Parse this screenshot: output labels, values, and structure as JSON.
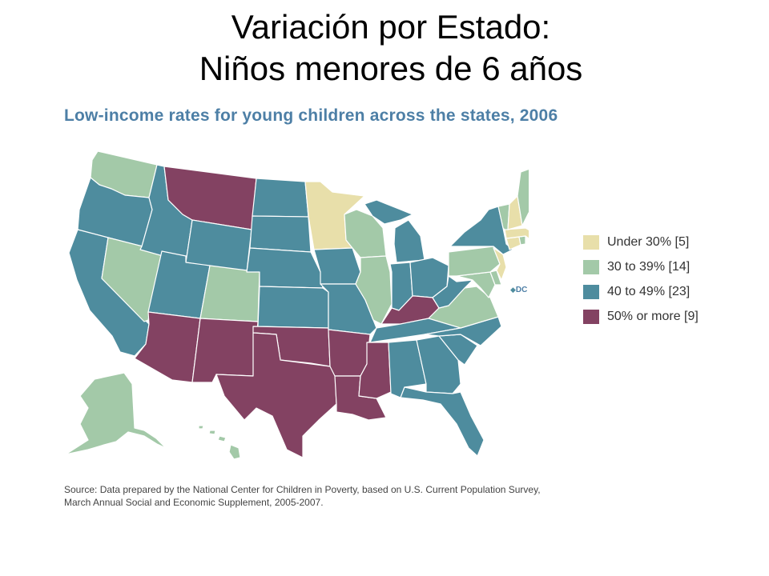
{
  "slide": {
    "title_line1": "Variación por Estado:",
    "title_line2": "Niños menores de 6 años"
  },
  "map": {
    "title": "Low-income rates for young children across the states, 2006",
    "dc_label": "DC",
    "dc_marker": "◆"
  },
  "legend": [
    {
      "label": "Under 30% [5]",
      "color": "#e8dfaa"
    },
    {
      "label": "30 to 39% [14]",
      "color": "#a3c9a8"
    },
    {
      "label": "40 to 49% [23]",
      "color": "#4e8c9e"
    },
    {
      "label": "50% or more [9]",
      "color": "#834262"
    }
  ],
  "state_categories": {
    "WA": 1,
    "OR": 2,
    "CA": 2,
    "NV": 1,
    "ID": 2,
    "MT": 3,
    "WY": 2,
    "UT": 2,
    "AZ": 3,
    "CO": 1,
    "NM": 3,
    "ND": 2,
    "SD": 2,
    "NE": 2,
    "KS": 2,
    "OK": 3,
    "TX": 3,
    "MN": 0,
    "IA": 2,
    "MO": 2,
    "AR": 3,
    "LA": 3,
    "WI": 1,
    "IL": 1,
    "MI": 2,
    "IN": 2,
    "OH": 2,
    "KY": 3,
    "TN": 2,
    "MS": 3,
    "AL": 2,
    "GA": 2,
    "FL": 2,
    "SC": 2,
    "NC": 2,
    "VA": 1,
    "WV": 2,
    "MD": 1,
    "DE": 1,
    "PA": 1,
    "NJ": 0,
    "NY": 2,
    "CT": 0,
    "RI": 1,
    "MA": 0,
    "VT": 1,
    "NH": 0,
    "ME": 1,
    "AK": 1,
    "HI": 1
  },
  "source": {
    "line1": "Source: Data prepared by the National Center for Children in Poverty, based on U.S. Current Population Survey,",
    "line2": "March Annual Social and Economic Supplement, 2005-2007."
  }
}
